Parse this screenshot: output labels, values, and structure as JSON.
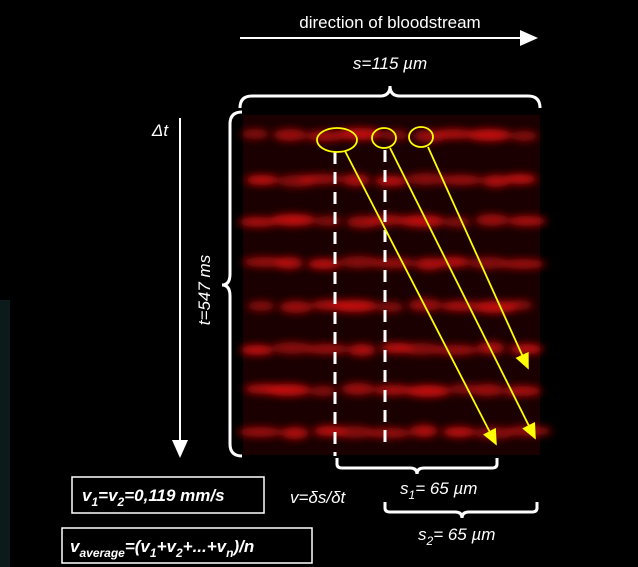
{
  "direction_label": "direction of bloodstream",
  "length_label": "s=115 µm",
  "delta_t_label": "Δt",
  "time_label": "t=547 ms",
  "velocity_label": "v=δs/δt",
  "s1_label": [
    "s",
    "1",
    "= 65 µm"
  ],
  "s2_label": [
    "s",
    "2",
    "= 65 µm"
  ],
  "equal_velocity_box": [
    "v",
    "1",
    "=v",
    "2",
    "=0,119 mm/s"
  ],
  "average_velocity_box": [
    "v",
    "average",
    "=(v",
    "1",
    "+v",
    "2",
    "+...+v",
    "n",
    ")/n"
  ]
}
